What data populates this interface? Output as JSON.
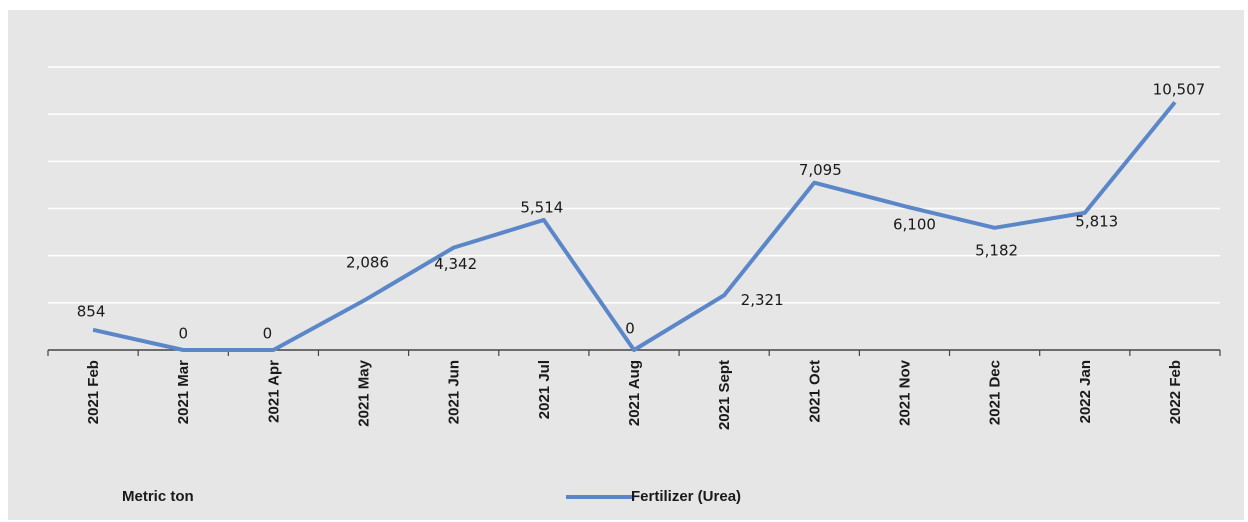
{
  "chart_data": {
    "type": "line",
    "categories": [
      "2021 Feb",
      "2021 Mar",
      "2021 Apr",
      "2021 May",
      "2021 Jun",
      "2021 Jul",
      "2021 Aug",
      "2021 Sept",
      "2021 Oct",
      "2021 Nov",
      "2021 Dec",
      "2022 Jan",
      "2022 Feb"
    ],
    "series": [
      {
        "name": "Fertilizer (Urea)",
        "values": [
          854,
          0,
          0,
          2086,
          4342,
          5514,
          0,
          2321,
          7095,
          6100,
          5182,
          5813,
          10507
        ],
        "labels": [
          "854",
          "0",
          "0",
          "2,086",
          "4,342",
          "5,514",
          "0",
          "2,321",
          "7,095",
          "6,100",
          "5,182",
          "5,813",
          "10,507"
        ],
        "color": "#5b87c9"
      }
    ],
    "ylabel": "Metric ton",
    "ylim": [
      0,
      12000
    ],
    "grid": true,
    "legend_position": "bottom"
  },
  "footer": {
    "unit_label": "Metric ton",
    "legend_label": "Fertilizer (Urea)"
  }
}
